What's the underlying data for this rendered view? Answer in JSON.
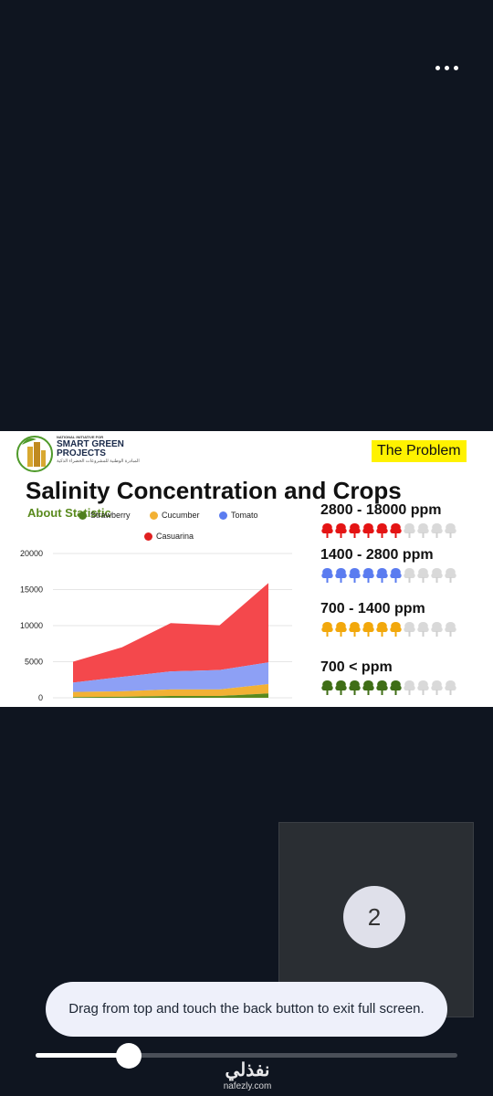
{
  "menu": {
    "icon": "more-dots-icon"
  },
  "slide": {
    "logo": {
      "small_line": "NATIONAL INITIATIVE FOR",
      "main_line1": "SMART GREEN",
      "main_line2": "PROJECTS",
      "arabic_line": "المبادرة الوطنية للمشروعات الخضراء الذكية"
    },
    "problem_tag": "The Problem",
    "title": "Salinity Concentration and Crops",
    "about": "About Statistic",
    "legend": [
      {
        "label": "Strawberry",
        "color": "#4f7f1e"
      },
      {
        "label": "Cucumber",
        "color": "#f2b134"
      },
      {
        "label": "Tomato",
        "color": "#5b7cf0"
      },
      {
        "label": "Casuarina",
        "color": "#e02020"
      }
    ],
    "bands": [
      {
        "label": "2800 - 18000 ppm",
        "color": "#e41414",
        "filled": 6,
        "total": 10
      },
      {
        "label": "1400 - 2800 ppm",
        "color": "#5b7cf0",
        "filled": 6,
        "total": 10
      },
      {
        "label": "700 - 1400 ppm",
        "color": "#f2a80c",
        "filled": 6,
        "total": 10
      },
      {
        "label": "700 < ppm",
        "color": "#3f6e16",
        "filled": 6,
        "total": 10
      }
    ]
  },
  "chart_data": {
    "type": "area",
    "stacked": true,
    "x": [
      1,
      2,
      3,
      4,
      5
    ],
    "ylim": [
      0,
      20000
    ],
    "yticks": [
      "0",
      "5000",
      "10000",
      "15000",
      "20000"
    ],
    "series": [
      {
        "name": "Strawberry",
        "color": "#5a8a1e",
        "values": [
          100,
          150,
          250,
          250,
          600
        ]
      },
      {
        "name": "Cucumber",
        "color": "#f2b134",
        "values": [
          700,
          750,
          900,
          900,
          1300
        ]
      },
      {
        "name": "Tomato",
        "color": "#8da0f5",
        "values": [
          1300,
          2000,
          2500,
          2700,
          3000
        ]
      },
      {
        "name": "Casuarina",
        "color": "#f4484c",
        "values": [
          2900,
          4100,
          6700,
          6200,
          11000
        ]
      }
    ]
  },
  "page_indicator": "2",
  "toast": "Drag from top and touch the back button to exit full screen.",
  "seekbar": {
    "progress": 0.22
  },
  "watermark": {
    "arabic": "نفذلي",
    "url": "nafezly.com"
  }
}
